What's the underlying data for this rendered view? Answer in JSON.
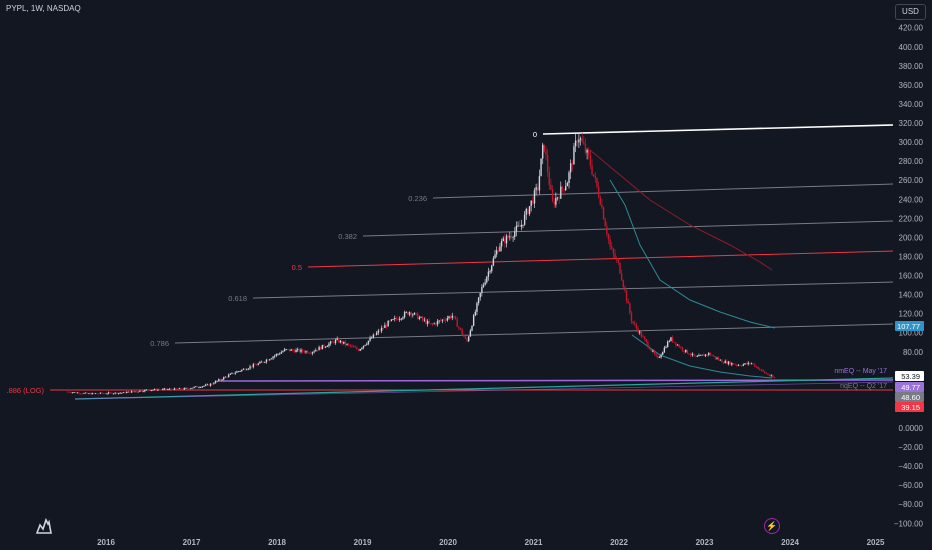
{
  "header": {
    "ticker": "PYPL, 1W, NASDAQ",
    "currency_button": "USD"
  },
  "colors": {
    "background": "#131722",
    "axis_text": "#b2b5be",
    "grid": "#1e222d",
    "up_candle": "#d1d4dc",
    "down_candle": "#c2182b",
    "fib_line": "#787b86",
    "fib_half": "#f23645",
    "top_line": "#ffffff",
    "ema_short": "#2e8a95",
    "ema_long": "#8c1d2b",
    "trend_purple": "#9c6ade",
    "trend_teal": "#26a69a",
    "support_red": "#f23645",
    "label_blue": "#2f95c9",
    "label_purple": "#9b72d6",
    "label_gray": "#787b86",
    "label_red": "#f23645"
  },
  "icons": {
    "logo": "tradingview-logo-icon",
    "bolt": "lightning-bolt-icon"
  },
  "chart_data": {
    "type": "candlestick",
    "x_axis": {
      "tick_labels": [
        "2016",
        "2017",
        "2018",
        "2019",
        "2020",
        "2021",
        "2022",
        "2023",
        "2024",
        "2025"
      ]
    },
    "y_axis": {
      "tick_labels": [
        "420.00",
        "400.00",
        "380.00",
        "360.00",
        "340.00",
        "320.00",
        "300.00",
        "280.00",
        "260.00",
        "240.00",
        "220.00",
        "200.00",
        "180.00",
        "160.00",
        "140.00",
        "120.00",
        "100.00",
        "80.00",
        "0.0000",
        "−20.00",
        "−40.00",
        "−60.00",
        "−80.00",
        "−100.00"
      ],
      "range": [
        -100,
        420
      ]
    },
    "price_path": [
      {
        "t": 2015.55,
        "p": 38
      },
      {
        "t": 2015.8,
        "p": 36
      },
      {
        "t": 2016.2,
        "p": 37
      },
      {
        "t": 2016.5,
        "p": 40
      },
      {
        "t": 2016.9,
        "p": 41
      },
      {
        "t": 2017.2,
        "p": 45
      },
      {
        "t": 2017.5,
        "p": 58
      },
      {
        "t": 2017.8,
        "p": 68
      },
      {
        "t": 2018.1,
        "p": 82
      },
      {
        "t": 2018.4,
        "p": 80
      },
      {
        "t": 2018.7,
        "p": 92
      },
      {
        "t": 2018.95,
        "p": 82
      },
      {
        "t": 2019.3,
        "p": 110
      },
      {
        "t": 2019.55,
        "p": 122
      },
      {
        "t": 2019.8,
        "p": 108
      },
      {
        "t": 2020.05,
        "p": 118
      },
      {
        "t": 2020.22,
        "p": 90
      },
      {
        "t": 2020.4,
        "p": 148
      },
      {
        "t": 2020.6,
        "p": 192
      },
      {
        "t": 2020.85,
        "p": 212
      },
      {
        "t": 2021.05,
        "p": 252
      },
      {
        "t": 2021.12,
        "p": 300
      },
      {
        "t": 2021.22,
        "p": 235
      },
      {
        "t": 2021.4,
        "p": 260
      },
      {
        "t": 2021.52,
        "p": 308
      },
      {
        "t": 2021.65,
        "p": 282
      },
      {
        "t": 2021.78,
        "p": 240
      },
      {
        "t": 2021.9,
        "p": 188
      },
      {
        "t": 2022.0,
        "p": 170
      },
      {
        "t": 2022.15,
        "p": 112
      },
      {
        "t": 2022.3,
        "p": 92
      },
      {
        "t": 2022.45,
        "p": 72
      },
      {
        "t": 2022.6,
        "p": 94
      },
      {
        "t": 2022.75,
        "p": 82
      },
      {
        "t": 2022.9,
        "p": 74
      },
      {
        "t": 2023.05,
        "p": 78
      },
      {
        "t": 2023.2,
        "p": 70
      },
      {
        "t": 2023.4,
        "p": 66
      },
      {
        "t": 2023.55,
        "p": 68
      },
      {
        "t": 2023.7,
        "p": 58
      },
      {
        "t": 2023.82,
        "p": 52
      }
    ],
    "fib_levels": [
      {
        "label": "0",
        "style": "top"
      },
      {
        "label": "0.236",
        "style": "gray"
      },
      {
        "label": "0.382",
        "style": "gray"
      },
      {
        "label": "0.5",
        "style": "red"
      },
      {
        "label": "0.618",
        "style": "gray"
      },
      {
        "label": "0.786",
        "style": "gray"
      },
      {
        "label": ".886 (LOG)",
        "style": "red"
      }
    ],
    "annotations": [
      {
        "label": "nmEQ -- May '17",
        "color": "#9b72d6"
      },
      {
        "label": "nqEQ -- Q2 '17",
        "color": "#787b86"
      }
    ],
    "price_labels": [
      {
        "text": "107.77",
        "bg": "#2f95c9",
        "fg": "#ffffff"
      },
      {
        "text": "53.39",
        "bg": "#ffffff",
        "fg": "#131722"
      },
      {
        "text": "49.77",
        "bg": "#9b72d6",
        "fg": "#ffffff"
      },
      {
        "text": "48.60",
        "bg": "#787b86",
        "fg": "#ffffff"
      },
      {
        "text": "39.15",
        "bg": "#f23645",
        "fg": "#ffffff"
      }
    ]
  }
}
